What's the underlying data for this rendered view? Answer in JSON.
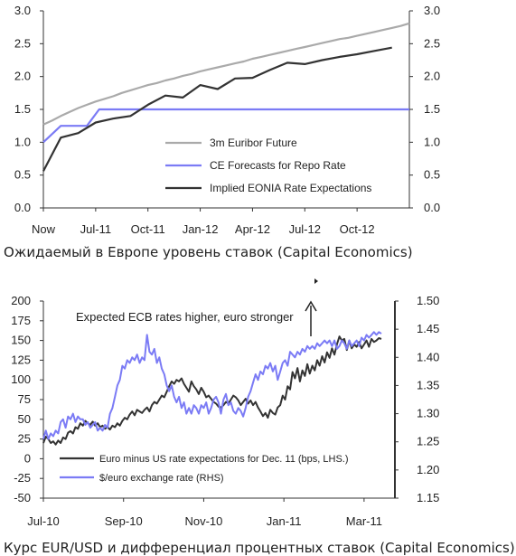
{
  "captions": {
    "chart1": "Ожидаемый в Европе уровень ставок (Capital Economics)",
    "chart2": "Курс EUR/USD и дифференциал процентных ставок (Capital Economics)"
  },
  "chart_data": [
    {
      "type": "line",
      "title": "",
      "xlabel": "",
      "ylabel": "",
      "ylim": [
        0,
        3
      ],
      "yticks": [
        "0.0",
        "0.5",
        "1.0",
        "1.5",
        "2.0",
        "2.5",
        "3.0"
      ],
      "y2ticks": [
        "0.0",
        "0.5",
        "1.0",
        "1.5",
        "2.0",
        "2.5",
        "3.0"
      ],
      "xtick_labels": [
        "Now",
        "Jul-11",
        "Oct-11",
        "Jan-12",
        "Apr-12",
        "Jul-12",
        "Oct-12"
      ],
      "grid": false,
      "legend_placement": "lower-right",
      "series": [
        {
          "name": "3m Euribor Future",
          "color": "#aaaaaa",
          "x": [
            0,
            0.5,
            1,
            1.5,
            2,
            2.5,
            3,
            3.5,
            4,
            4.5,
            5,
            5.5,
            6,
            6.5,
            7,
            7.5,
            8,
            8.5,
            9,
            9.5,
            10,
            10.5,
            11,
            11.5,
            12,
            12.5,
            13,
            13.5,
            14,
            14.5,
            15,
            15.5,
            16,
            16.5,
            17,
            17.5,
            18,
            18.5,
            19,
            19.5,
            20,
            20.5,
            21
          ],
          "values": [
            1.27,
            1.33,
            1.4,
            1.46,
            1.52,
            1.57,
            1.62,
            1.66,
            1.7,
            1.75,
            1.79,
            1.83,
            1.87,
            1.9,
            1.94,
            1.97,
            2.01,
            2.04,
            2.08,
            2.11,
            2.14,
            2.17,
            2.2,
            2.23,
            2.27,
            2.3,
            2.33,
            2.36,
            2.39,
            2.42,
            2.45,
            2.48,
            2.51,
            2.54,
            2.57,
            2.59,
            2.62,
            2.65,
            2.68,
            2.71,
            2.74,
            2.77,
            2.81
          ]
        },
        {
          "name": "CE Forecasts for Repo Rate",
          "color": "#7b7bf5",
          "x": [
            0,
            1,
            1.5,
            2.5,
            3.2,
            4,
            21
          ],
          "values": [
            1.0,
            1.25,
            1.25,
            1.25,
            1.5,
            1.5,
            1.5
          ]
        },
        {
          "name": "Implied EONIA Rate Expectations",
          "color": "#333333",
          "x": [
            0,
            1,
            2,
            3,
            4,
            5,
            6,
            7,
            8,
            9,
            10,
            11,
            12,
            13,
            14,
            15,
            16,
            17,
            18,
            19,
            20
          ],
          "values": [
            0.56,
            1.07,
            1.14,
            1.3,
            1.36,
            1.4,
            1.57,
            1.71,
            1.68,
            1.87,
            1.81,
            1.97,
            1.98,
            2.1,
            2.21,
            2.19,
            2.25,
            2.3,
            2.34,
            2.39,
            2.44
          ]
        }
      ]
    },
    {
      "type": "line",
      "title": "",
      "xlabel": "",
      "ylabel": "",
      "ylim": [
        -50,
        200
      ],
      "y2lim": [
        1.15,
        1.5
      ],
      "yticks": [
        "-50",
        "-25",
        "0",
        "25",
        "50",
        "75",
        "100",
        "125",
        "150",
        "175",
        "200"
      ],
      "y2ticks": [
        "1.15",
        "1.20",
        "1.25",
        "1.30",
        "1.35",
        "1.40",
        "1.45",
        "1.50"
      ],
      "xtick_labels": [
        "Jul-10",
        "Sep-10",
        "Nov-10",
        "Jan-11",
        "Mar-11"
      ],
      "grid": false,
      "legend_placement": "lower-left",
      "annotation": "Expected ECB rates higher, euro stronger",
      "series": [
        {
          "name": "Euro minus US rate expectations for Dec. 11 (bps, LHS.)",
          "color": "#333333",
          "axis": "left",
          "x": [
            0,
            0.4,
            0.8,
            1.2,
            1.6,
            2.0,
            2.4,
            2.8,
            3.2,
            3.6,
            4.0,
            4.4,
            4.8,
            5.2,
            5.6,
            6.0,
            6.4,
            6.8,
            7.2,
            7.6,
            8.0,
            8.4,
            8.8,
            9.2,
            9.6,
            10.0,
            10.4,
            10.8,
            11.2,
            11.6,
            12.0,
            12.4,
            12.8,
            13.2,
            13.6,
            14.0,
            14.4,
            14.8,
            15.2,
            15.6,
            16.0,
            16.4,
            16.8,
            17.2,
            17.6,
            18.0,
            18.4,
            18.8,
            19.2,
            19.6,
            20.0,
            20.4,
            20.8,
            21.2,
            21.6,
            22.0,
            22.4,
            22.8,
            23.2,
            23.6,
            24.0,
            24.4,
            24.8,
            25.2,
            25.6,
            26.0,
            26.4,
            26.8,
            27.2,
            27.6,
            28.0,
            28.4,
            28.8,
            29.2,
            29.6,
            30.0,
            30.4,
            30.8,
            31.2,
            31.6,
            32.0,
            32.4,
            32.8,
            33.2,
            33.6,
            34.0,
            34.4,
            34.8,
            35.2,
            35.6,
            36.0,
            36.4,
            36.8,
            37.2,
            37.6,
            38.0,
            38.4,
            38.8,
            39.2,
            39.6,
            40.0,
            40.4,
            40.8,
            41.2,
            41.6,
            42.0,
            42.4,
            42.8,
            43.2,
            43.6,
            44.0,
            44.4,
            44.8,
            45.2,
            45.6,
            46.0,
            46.4,
            46.8,
            47.2,
            47.6,
            48.0,
            48.4,
            48.8,
            49.2,
            49.6,
            50.0,
            50.4,
            50.8,
            51.2,
            51.6,
            52.0,
            52.4,
            52.8,
            53.2,
            53.6,
            54.0,
            54.4,
            54.8
          ],
          "values": [
            20,
            28,
            25,
            20,
            22,
            18,
            23,
            20,
            27,
            25,
            33,
            35,
            32,
            40,
            38,
            45,
            42,
            48,
            45,
            43,
            47,
            42,
            45,
            40,
            42,
            38,
            40,
            37,
            42,
            40,
            45,
            42,
            48,
            52,
            50,
            56,
            60,
            55,
            62,
            60,
            58,
            62,
            65,
            60,
            68,
            72,
            70,
            75,
            80,
            78,
            85,
            92,
            98,
            95,
            100,
            98,
            102,
            95,
            90,
            85,
            98,
            92,
            88,
            82,
            90,
            85,
            78,
            80,
            76,
            72,
            70,
            66,
            65,
            68,
            72,
            70,
            75,
            80,
            78,
            74,
            68,
            72,
            76,
            70,
            74,
            68,
            72,
            65,
            60,
            54,
            58,
            52,
            62,
            58,
            56,
            65,
            68,
            80,
            75,
            92,
            88,
            110,
            102,
            115,
            98,
            112,
            105,
            120,
            108,
            118,
            112,
            125,
            118,
            130,
            122,
            135,
            128,
            140,
            132,
            145,
            155,
            150,
            152,
            138,
            150,
            140,
            145,
            142,
            148,
            140,
            145,
            150,
            142,
            152,
            148,
            150,
            153,
            152
          ]
        },
        {
          "name": "$/euro exchange rate (RHS)",
          "color": "#7b7bf5",
          "axis": "right",
          "x": [
            0,
            0.4,
            0.8,
            1.2,
            1.6,
            2.0,
            2.4,
            2.8,
            3.2,
            3.6,
            4.0,
            4.4,
            4.8,
            5.2,
            5.6,
            6.0,
            6.4,
            6.8,
            7.2,
            7.6,
            8.0,
            8.4,
            8.8,
            9.2,
            9.6,
            10.0,
            10.4,
            10.8,
            11.2,
            11.6,
            12.0,
            12.4,
            12.8,
            13.2,
            13.6,
            14.0,
            14.4,
            14.8,
            15.2,
            15.6,
            16.0,
            16.4,
            16.8,
            17.2,
            17.6,
            18.0,
            18.4,
            18.8,
            19.2,
            19.6,
            20.0,
            20.4,
            20.8,
            21.2,
            21.6,
            22.0,
            22.4,
            22.8,
            23.2,
            23.6,
            24.0,
            24.4,
            24.8,
            25.2,
            25.6,
            26.0,
            26.4,
            26.8,
            27.2,
            27.6,
            28.0,
            28.4,
            28.8,
            29.2,
            29.6,
            30.0,
            30.4,
            30.8,
            31.2,
            31.6,
            32.0,
            32.4,
            32.8,
            33.2,
            33.6,
            34.0,
            34.4,
            34.8,
            35.2,
            35.6,
            36.0,
            36.4,
            36.8,
            37.2,
            37.6,
            38.0,
            38.4,
            38.8,
            39.2,
            39.6,
            40.0,
            40.4,
            40.8,
            41.2,
            41.6,
            42.0,
            42.4,
            42.8,
            43.2,
            43.6,
            44.0,
            44.4,
            44.8,
            45.2,
            45.6,
            46.0,
            46.4,
            46.8,
            47.2,
            47.6,
            48.0,
            48.4,
            48.8,
            49.2,
            49.6,
            50.0,
            50.4,
            50.8,
            51.2,
            51.6,
            52.0,
            52.4,
            52.8,
            53.2,
            53.6,
            54.0,
            54.4,
            54.8
          ],
          "values": [
            1.255,
            1.27,
            1.255,
            1.265,
            1.26,
            1.27,
            1.265,
            1.285,
            1.29,
            1.275,
            1.295,
            1.29,
            1.3,
            1.285,
            1.295,
            1.29,
            1.29,
            1.28,
            1.285,
            1.275,
            1.28,
            1.285,
            1.27,
            1.275,
            1.27,
            1.28,
            1.275,
            1.3,
            1.31,
            1.33,
            1.35,
            1.36,
            1.385,
            1.38,
            1.395,
            1.39,
            1.4,
            1.395,
            1.405,
            1.39,
            1.4,
            1.395,
            1.44,
            1.41,
            1.405,
            1.415,
            1.39,
            1.4,
            1.38,
            1.37,
            1.35,
            1.34,
            1.35,
            1.33,
            1.32,
            1.33,
            1.31,
            1.32,
            1.3,
            1.31,
            1.3,
            1.315,
            1.31,
            1.3,
            1.315,
            1.31,
            1.32,
            1.3,
            1.31,
            1.325,
            1.33,
            1.32,
            1.3,
            1.325,
            1.335,
            1.315,
            1.32,
            1.305,
            1.3,
            1.31,
            1.305,
            1.295,
            1.31,
            1.33,
            1.34,
            1.355,
            1.37,
            1.36,
            1.375,
            1.37,
            1.385,
            1.38,
            1.39,
            1.375,
            1.385,
            1.36,
            1.375,
            1.39,
            1.395,
            1.385,
            1.41,
            1.405,
            1.4,
            1.41,
            1.405,
            1.415,
            1.41,
            1.42,
            1.415,
            1.42,
            1.415,
            1.425,
            1.42,
            1.425,
            1.43,
            1.425,
            1.43,
            1.42,
            1.43,
            1.415,
            1.42,
            1.43,
            1.425,
            1.415,
            1.43,
            1.42,
            1.425,
            1.43,
            1.42,
            1.435,
            1.43,
            1.44,
            1.435,
            1.44,
            1.445,
            1.44,
            1.445,
            1.442
          ]
        }
      ]
    }
  ]
}
